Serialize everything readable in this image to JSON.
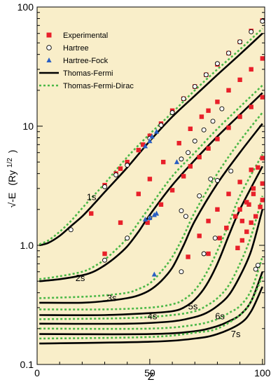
{
  "chart_data": {
    "type": "scatter",
    "xlabel": "Z",
    "ylabel": "√-E",
    "ylabel_unit": "(Ry",
    "ylabel_unit_sup": "1/2",
    "ylabel_unit_close": ")",
    "xlim": [
      0,
      101
    ],
    "ylim": [
      0.1,
      100
    ],
    "yscale": "log",
    "x_ticks": [
      "0",
      "50",
      "100"
    ],
    "y_ticks": [
      "0.1",
      "1.0",
      "10",
      "100"
    ],
    "plot_background": "#f9eec9",
    "legend_position": "top-left",
    "legend": [
      {
        "label": "Experimental",
        "marker": "square",
        "color": "#e8202a"
      },
      {
        "label": "Hartree",
        "marker": "open-circle",
        "color": "#000000"
      },
      {
        "label": "Hartree-Fock",
        "marker": "triangle",
        "color": "#2a5fc4"
      },
      {
        "label": "Thomas-Fermi",
        "marker": "solid-line",
        "color": "#000000"
      },
      {
        "label": "Thomas-Fermi-Dirac",
        "marker": "dotted-line",
        "color": "#4cb848"
      }
    ],
    "orbital_labels": [
      {
        "text": "1s",
        "x": 22,
        "y": 2.4
      },
      {
        "text": "2s",
        "x": 17,
        "y": 0.5
      },
      {
        "text": "3s",
        "x": 31,
        "y": 0.34
      },
      {
        "text": "4s",
        "x": 49,
        "y": 0.24
      },
      {
        "text": "5s",
        "x": 67,
        "y": 0.29
      },
      {
        "text": "6s",
        "x": 79,
        "y": 0.24
      },
      {
        "text": "7s",
        "x": 86,
        "y": 0.17
      }
    ],
    "thomas_fermi": [
      {
        "orbital": "1s",
        "x": [
          1,
          5,
          10,
          15,
          20,
          25,
          30,
          40,
          50,
          60,
          70,
          80,
          90,
          100
        ],
        "y": [
          1.0,
          1.05,
          1.2,
          1.45,
          1.75,
          2.2,
          2.8,
          4.5,
          7.5,
          12,
          18,
          27,
          40,
          60
        ]
      },
      {
        "orbital": "2s",
        "x": [
          1,
          10,
          20,
          25,
          30,
          35,
          40,
          45,
          50,
          60,
          70,
          80,
          90,
          100
        ],
        "y": [
          0.5,
          0.52,
          0.56,
          0.6,
          0.68,
          0.8,
          0.98,
          1.3,
          1.8,
          3.2,
          5.2,
          8.2,
          12.5,
          19
        ]
      },
      {
        "orbital": "3s",
        "x": [
          1,
          20,
          30,
          40,
          45,
          50,
          55,
          60,
          65,
          70,
          80,
          90,
          100
        ],
        "y": [
          0.33,
          0.33,
          0.34,
          0.36,
          0.38,
          0.42,
          0.5,
          0.65,
          1.0,
          1.6,
          3.3,
          6.0,
          10.5
        ]
      },
      {
        "orbital": "4s",
        "x": [
          1,
          30,
          50,
          60,
          65,
          70,
          75,
          80,
          85,
          90,
          100
        ],
        "y": [
          0.26,
          0.26,
          0.27,
          0.28,
          0.3,
          0.35,
          0.46,
          0.7,
          1.2,
          2.0,
          4.6
        ]
      },
      {
        "orbital": "5s",
        "x": [
          1,
          40,
          60,
          70,
          75,
          80,
          85,
          90,
          95,
          100
        ],
        "y": [
          0.22,
          0.22,
          0.23,
          0.25,
          0.27,
          0.31,
          0.38,
          0.55,
          0.9,
          2.0
        ]
      },
      {
        "orbital": "6s",
        "x": [
          1,
          50,
          70,
          80,
          85,
          90,
          95,
          100
        ],
        "y": [
          0.18,
          0.18,
          0.19,
          0.21,
          0.23,
          0.26,
          0.34,
          0.6
        ]
      },
      {
        "orbital": "7s",
        "x": [
          1,
          50,
          70,
          80,
          90,
          95,
          100
        ],
        "y": [
          0.15,
          0.155,
          0.165,
          0.18,
          0.22,
          0.28,
          0.45
        ]
      }
    ],
    "thomas_fermi_dirac": [
      {
        "orbital": "1s",
        "x": [
          1,
          5,
          10,
          15,
          20,
          25,
          30,
          40,
          50,
          60,
          70,
          80,
          90,
          100
        ],
        "y": [
          1.02,
          1.1,
          1.3,
          1.6,
          2.05,
          2.6,
          3.3,
          5.5,
          8.6,
          13,
          20,
          30,
          44,
          66
        ]
      },
      {
        "orbital": "2s",
        "x": [
          1,
          10,
          20,
          25,
          30,
          35,
          40,
          45,
          50,
          60,
          70,
          80,
          90,
          100
        ],
        "y": [
          0.52,
          0.55,
          0.6,
          0.66,
          0.76,
          0.92,
          1.15,
          1.55,
          2.1,
          3.8,
          6.0,
          9.5,
          14.5,
          22
        ]
      },
      {
        "orbital": "3s",
        "x": [
          1,
          20,
          30,
          40,
          45,
          50,
          55,
          60,
          65,
          70,
          80,
          90,
          100
        ],
        "y": [
          0.36,
          0.37,
          0.38,
          0.4,
          0.43,
          0.48,
          0.6,
          0.8,
          1.2,
          1.9,
          4.0,
          7.5,
          13
        ]
      },
      {
        "orbital": "4s",
        "x": [
          1,
          30,
          50,
          60,
          65,
          70,
          75,
          80,
          85,
          90,
          100
        ],
        "y": [
          0.29,
          0.29,
          0.3,
          0.32,
          0.35,
          0.42,
          0.58,
          0.9,
          1.5,
          2.6,
          5.8
        ]
      },
      {
        "orbital": "5s",
        "x": [
          1,
          40,
          60,
          70,
          75,
          80,
          85,
          90,
          95,
          100
        ],
        "y": [
          0.24,
          0.245,
          0.26,
          0.28,
          0.31,
          0.36,
          0.46,
          0.7,
          1.2,
          2.6
        ]
      },
      {
        "orbital": "6s",
        "x": [
          1,
          50,
          70,
          80,
          85,
          90,
          95,
          100
        ],
        "y": [
          0.2,
          0.2,
          0.215,
          0.24,
          0.27,
          0.31,
          0.42,
          0.8
        ]
      },
      {
        "orbital": "7s",
        "x": [
          1,
          50,
          70,
          80,
          90,
          95,
          100
        ],
        "y": [
          0.165,
          0.17,
          0.185,
          0.2,
          0.26,
          0.34,
          0.55
        ]
      }
    ],
    "experimental": {
      "x": [
        24,
        30,
        35,
        37,
        40,
        45,
        47,
        50,
        55,
        60,
        65,
        70,
        75,
        80,
        85,
        90,
        95,
        100,
        30,
        37,
        45,
        50,
        56,
        63,
        68,
        73,
        76,
        80,
        85,
        90,
        95,
        100,
        49,
        55,
        60,
        65,
        68,
        72,
        76,
        80,
        85,
        90,
        95,
        100,
        67,
        72,
        76,
        80,
        85,
        90,
        95,
        100,
        76,
        81,
        84,
        88,
        90,
        93,
        96,
        100,
        89,
        91,
        93,
        95,
        97,
        99,
        100,
        91,
        94,
        96,
        98
      ],
      "y": [
        1.85,
        3.2,
        4.0,
        4.4,
        5.0,
        6.3,
        7.0,
        8.3,
        10.5,
        13.5,
        17,
        21.5,
        27,
        33,
        41,
        51,
        63,
        77,
        0.85,
        1.55,
        2.7,
        3.6,
        5.0,
        7.2,
        9.5,
        12,
        13.5,
        16,
        20,
        24.5,
        30,
        37,
        1.55,
        2.2,
        2.9,
        3.8,
        4.6,
        5.5,
        6.5,
        7.8,
        9.7,
        12,
        14.5,
        17.5,
        0.8,
        1.2,
        1.6,
        2.0,
        2.7,
        3.4,
        4.3,
        5.4,
        0.85,
        1.15,
        1.4,
        1.75,
        2.0,
        2.3,
        2.7,
        3.3,
        0.95,
        1.1,
        1.3,
        1.55,
        1.75,
        2.1,
        2.4,
        1.6,
        2.2,
        3.0,
        4.5
      ]
    },
    "hartree": {
      "x": [
        15,
        30,
        35,
        40,
        50,
        55,
        60,
        65,
        70,
        75,
        80,
        85,
        90,
        95,
        100,
        30,
        40,
        50,
        64,
        67,
        70,
        74,
        78,
        82,
        64,
        66,
        72,
        77,
        80,
        86,
        64,
        74,
        79,
        97,
        98
      ],
      "y": [
        1.35,
        3.1,
        3.9,
        4.7,
        7.9,
        10.2,
        13,
        17,
        21.5,
        27,
        33.5,
        41,
        51,
        62,
        76,
        0.75,
        1.15,
        1.7,
        5.3,
        6.0,
        7.5,
        9.3,
        11,
        14,
        1.95,
        1.75,
        2.6,
        3.6,
        3.5,
        4.2,
        0.6,
        0.85,
        1.15,
        0.63,
        0.68
      ]
    },
    "hartree_fock": {
      "x": [
        48,
        50,
        51,
        53,
        48,
        50,
        52,
        53,
        62,
        52
      ],
      "y": [
        6.8,
        7.5,
        8.2,
        9.0,
        1.65,
        1.7,
        1.8,
        1.85,
        5.0,
        0.57
      ]
    }
  }
}
